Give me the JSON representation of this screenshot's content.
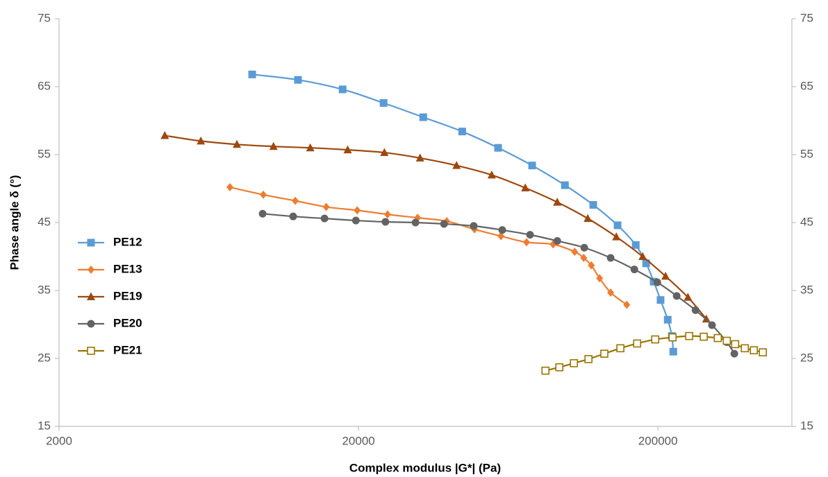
{
  "chart_data": {
    "type": "line",
    "xlabel": "Complex modulus |G*| (Pa)",
    "ylabel": "Phase angle δ (°)",
    "xscale": "log",
    "xlim": [
      2000,
      560000
    ],
    "xticks": [
      2000,
      20000,
      200000
    ],
    "ylim": [
      15,
      75
    ],
    "yticks": [
      15,
      25,
      35,
      45,
      55,
      65,
      75
    ],
    "y2lim": [
      15,
      75
    ],
    "y2ticks": [
      15,
      25,
      35,
      45,
      55,
      65,
      75
    ],
    "legend": "left",
    "series": [
      {
        "name": "PE12",
        "color": "#5b9bd5",
        "marker": "square",
        "x": [
          8830,
          12560,
          17700,
          24250,
          32900,
          44400,
          58500,
          76000,
          97800,
          121600,
          146600,
          168600,
          182600,
          193600,
          204000,
          215600,
          222500,
          225000
        ],
        "values": [
          66.8,
          66.0,
          64.6,
          62.6,
          60.5,
          58.4,
          56.0,
          53.4,
          50.5,
          47.6,
          44.6,
          41.7,
          39.0,
          36.3,
          33.6,
          30.7,
          28.3,
          26.0
        ]
      },
      {
        "name": "PE13",
        "color": "#ed7d31",
        "marker": "diamond",
        "x": [
          7440,
          9620,
          12300,
          15600,
          19800,
          25000,
          31500,
          39400,
          48800,
          59800,
          72800,
          89300,
          105400,
          113000,
          119800,
          127700,
          139000,
          157300
        ],
        "values": [
          50.2,
          49.1,
          48.2,
          47.3,
          46.8,
          46.2,
          45.7,
          45.2,
          44.0,
          43.0,
          42.1,
          41.8,
          40.7,
          39.8,
          38.7,
          36.8,
          34.7,
          32.9
        ]
      },
      {
        "name": "PE19",
        "color": "#9e480e",
        "marker": "triangle",
        "x": [
          4510,
          5950,
          7850,
          10400,
          13800,
          18400,
          24400,
          32100,
          42500,
          55700,
          72100,
          92200,
          116600,
          145200,
          177800,
          212000,
          251800,
          290000
        ],
        "values": [
          57.8,
          57.0,
          56.5,
          56.2,
          56.0,
          55.7,
          55.3,
          54.5,
          53.4,
          52.0,
          50.1,
          48.0,
          45.6,
          42.9,
          40.0,
          37.1,
          34.0,
          30.8
        ]
      },
      {
        "name": "PE20",
        "color": "#636363",
        "marker": "circle",
        "x": [
          9570,
          12100,
          15400,
          19600,
          24600,
          31000,
          38600,
          48500,
          60400,
          74800,
          92200,
          113500,
          139000,
          166800,
          199000,
          231000,
          267000,
          303000,
          339600,
          359800
        ],
        "values": [
          46.3,
          45.9,
          45.6,
          45.3,
          45.1,
          45.0,
          44.8,
          44.5,
          43.9,
          43.2,
          42.3,
          41.3,
          39.8,
          38.1,
          36.2,
          34.2,
          32.1,
          29.9,
          27.4,
          25.7
        ]
      },
      {
        "name": "PE21",
        "color": "#997300",
        "marker": "open-square",
        "x": [
          84200,
          93700,
          104800,
          117200,
          132400,
          149800,
          170400,
          195800,
          223800,
          254200,
          284400,
          316800,
          339600,
          362000,
          390000,
          418000,
          448000
        ],
        "values": [
          23.2,
          23.7,
          24.3,
          24.9,
          25.7,
          26.5,
          27.2,
          27.8,
          28.1,
          28.3,
          28.2,
          28.0,
          27.6,
          27.1,
          26.5,
          26.2,
          25.9
        ]
      }
    ]
  }
}
